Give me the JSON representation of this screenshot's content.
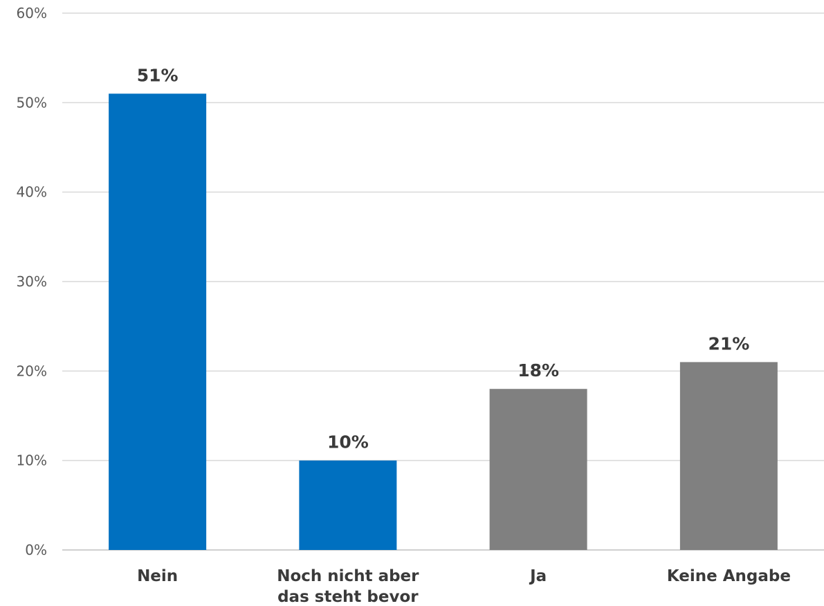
{
  "chart_data": {
    "type": "bar",
    "categories": [
      "Nein",
      "Noch nicht aber das steht bevor",
      "Ja",
      "Keine Angabe"
    ],
    "category_label_lines": [
      [
        "Nein"
      ],
      [
        "Noch nicht aber",
        "das steht bevor"
      ],
      [
        "Ja"
      ],
      [
        "Keine Angabe"
      ]
    ],
    "values": [
      51,
      10,
      18,
      21
    ],
    "value_labels": [
      "51%",
      "10%",
      "18%",
      "21%"
    ],
    "bar_colors": [
      "#0070C0",
      "#0070C0",
      "#808080",
      "#808080"
    ],
    "ylim": [
      0,
      60
    ],
    "yticks": [
      0,
      10,
      20,
      30,
      40,
      50,
      60
    ],
    "ytick_labels": [
      "0%",
      "10%",
      "20%",
      "30%",
      "40%",
      "50%",
      "60%"
    ],
    "grid": true,
    "title": "",
    "xlabel": "",
    "ylabel": ""
  }
}
